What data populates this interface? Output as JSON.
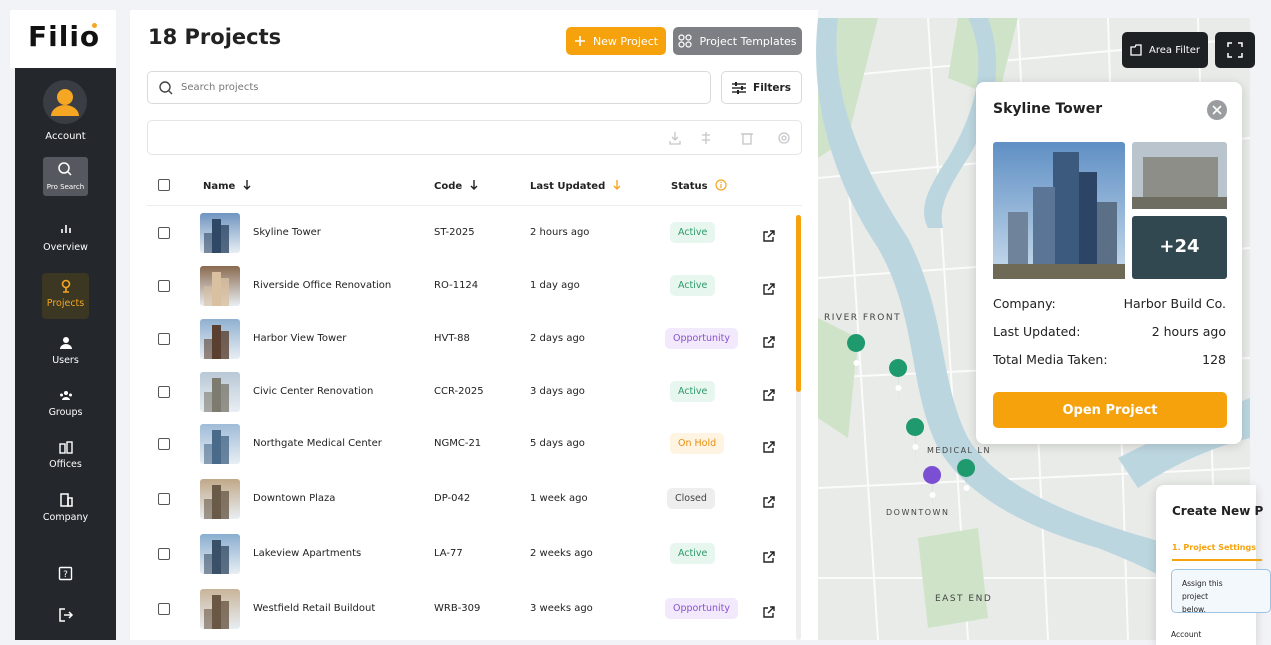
{
  "logo": "Filio",
  "sidebar": {
    "account": "Account",
    "pro_search": "Pro Search",
    "items": [
      "Overview",
      "Projects",
      "Users",
      "Groups",
      "Offices",
      "Company"
    ]
  },
  "header": {
    "title": "18 Projects",
    "new_project": "New Project",
    "templates": "Project Templates"
  },
  "search": {
    "placeholder": "Search projects",
    "filters": "Filters"
  },
  "table": {
    "columns": [
      "Name",
      "Code",
      "Last Updated",
      "Status"
    ],
    "rows": [
      [
        "Skyline Tower",
        "ST-2025",
        "2 hours ago",
        "Active"
      ],
      [
        "Riverside Office Renovation",
        "RO-1124",
        "1 day ago",
        "Active"
      ],
      [
        "Harbor View Tower",
        "HVT-88",
        "2 days ago",
        "Opportunity"
      ],
      [
        "Civic Center Renovation",
        "CCR-2025",
        "3 days ago",
        "Active"
      ],
      [
        "Northgate Medical Center",
        "NGMC-21",
        "5 days ago",
        "On Hold"
      ],
      [
        "Downtown Plaza",
        "DP-042",
        "1 week ago",
        "Closed"
      ],
      [
        "Lakeview Apartments",
        "LA-77",
        "2 weeks ago",
        "Active"
      ],
      [
        "Westfield Retail Buildout",
        "WRB-309",
        "3 weeks ago",
        "Opportunity"
      ]
    ]
  },
  "map": {
    "area_filter": "Area Filter",
    "labels": [
      "RIVER FRONT",
      "MEDICAL LN",
      "DOWNTOWN",
      "EAST END"
    ]
  },
  "popup": {
    "title": "Skyline Tower",
    "more": "+24",
    "company_label": "Company:",
    "company": "Harbor Build Co.",
    "updated_label": "Last Updated:",
    "updated": "2 hours ago",
    "media_label": "Total Media Taken:",
    "media": 128,
    "open": "Open Project"
  },
  "create": {
    "title": "Create New P",
    "step": "1. Project Settings",
    "hint": "Assign this project below.",
    "account": "Account"
  }
}
